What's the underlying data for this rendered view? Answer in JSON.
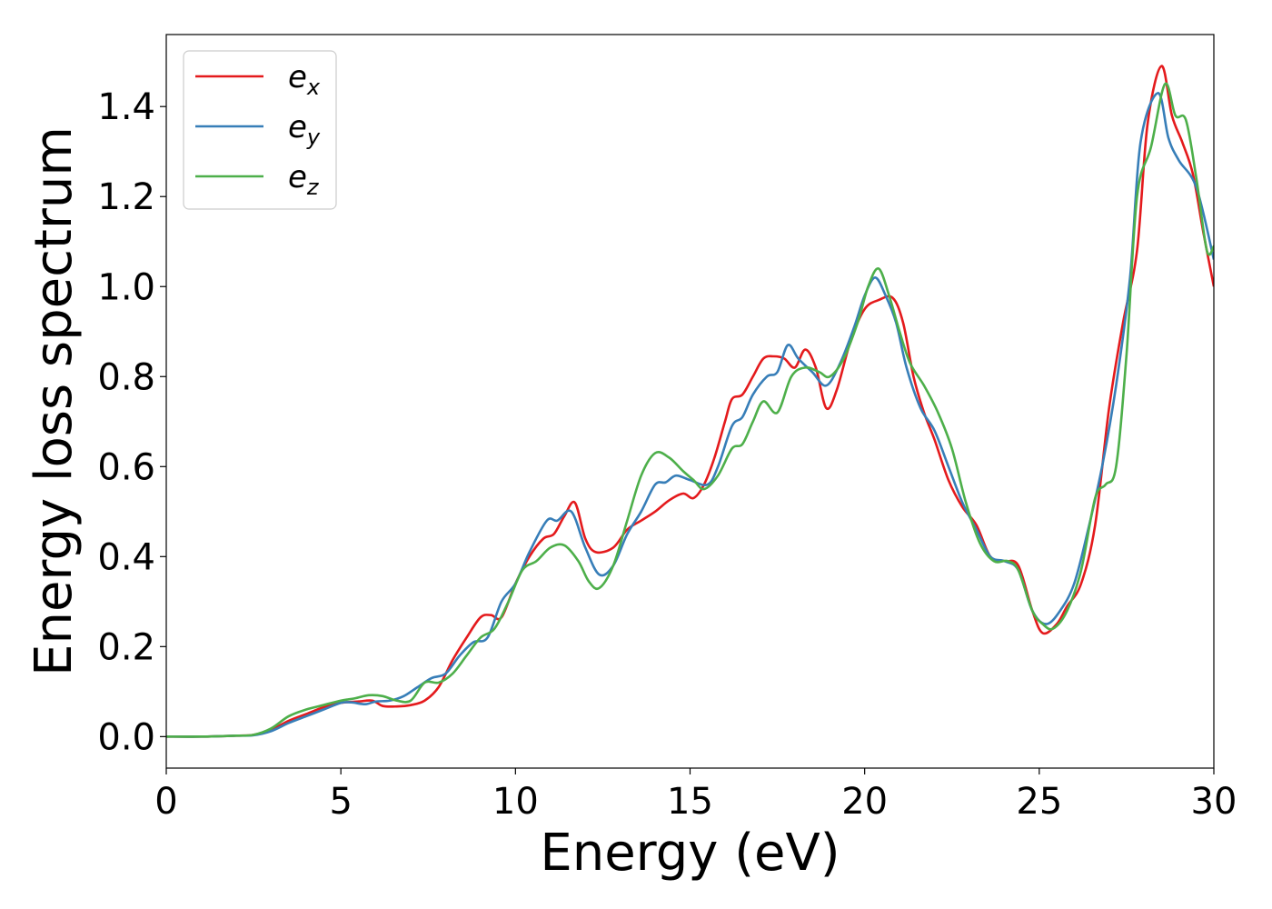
{
  "chart_data": {
    "type": "line",
    "xlabel": "Energy (eV)",
    "ylabel": "Energy loss spectrum",
    "xlim": [
      0,
      30
    ],
    "ylim": [
      -0.07,
      1.56
    ],
    "xticks": [
      0,
      5,
      10,
      15,
      20,
      25,
      30
    ],
    "xtick_labels": [
      "0",
      "5",
      "10",
      "15",
      "20",
      "25",
      "30"
    ],
    "yticks": [
      0.0,
      0.2,
      0.4,
      0.6,
      0.8,
      1.0,
      1.2,
      1.4
    ],
    "ytick_labels": [
      "0.0",
      "0.2",
      "0.4",
      "0.6",
      "0.8",
      "1.0",
      "1.2",
      "1.4"
    ],
    "grid": false,
    "legend_position": "top-left",
    "series": [
      {
        "name": "e",
        "name_sub": "x",
        "color": "#e41a1c",
        "points": [
          [
            0,
            0
          ],
          [
            1,
            0
          ],
          [
            2,
            0.002
          ],
          [
            2.5,
            0.004
          ],
          [
            3,
            0.015
          ],
          [
            3.5,
            0.035
          ],
          [
            4,
            0.05
          ],
          [
            4.5,
            0.065
          ],
          [
            5,
            0.075
          ],
          [
            5.5,
            0.078
          ],
          [
            5.9,
            0.08
          ],
          [
            6.2,
            0.068
          ],
          [
            6.6,
            0.067
          ],
          [
            7,
            0.07
          ],
          [
            7.4,
            0.08
          ],
          [
            7.8,
            0.11
          ],
          [
            8.2,
            0.17
          ],
          [
            8.6,
            0.22
          ],
          [
            9,
            0.265
          ],
          [
            9.3,
            0.27
          ],
          [
            9.6,
            0.265
          ],
          [
            10,
            0.34
          ],
          [
            10.4,
            0.4
          ],
          [
            10.8,
            0.44
          ],
          [
            11.1,
            0.45
          ],
          [
            11.4,
            0.49
          ],
          [
            11.7,
            0.52
          ],
          [
            12,
            0.44
          ],
          [
            12.3,
            0.41
          ],
          [
            12.8,
            0.42
          ],
          [
            13.2,
            0.46
          ],
          [
            13.6,
            0.48
          ],
          [
            14,
            0.5
          ],
          [
            14.4,
            0.525
          ],
          [
            14.8,
            0.54
          ],
          [
            15.1,
            0.53
          ],
          [
            15.4,
            0.56
          ],
          [
            15.7,
            0.62
          ],
          [
            16,
            0.7
          ],
          [
            16.2,
            0.75
          ],
          [
            16.5,
            0.76
          ],
          [
            16.8,
            0.8
          ],
          [
            17.1,
            0.84
          ],
          [
            17.4,
            0.845
          ],
          [
            17.7,
            0.84
          ],
          [
            18,
            0.82
          ],
          [
            18.3,
            0.86
          ],
          [
            18.6,
            0.82
          ],
          [
            18.9,
            0.73
          ],
          [
            19.2,
            0.77
          ],
          [
            19.6,
            0.88
          ],
          [
            20,
            0.95
          ],
          [
            20.4,
            0.97
          ],
          [
            20.8,
            0.975
          ],
          [
            21.1,
            0.92
          ],
          [
            21.4,
            0.8
          ],
          [
            21.7,
            0.72
          ],
          [
            22,
            0.66
          ],
          [
            22.4,
            0.57
          ],
          [
            22.8,
            0.51
          ],
          [
            23.2,
            0.47
          ],
          [
            23.6,
            0.4
          ],
          [
            24,
            0.39
          ],
          [
            24.4,
            0.38
          ],
          [
            24.8,
            0.28
          ],
          [
            25.1,
            0.23
          ],
          [
            25.5,
            0.25
          ],
          [
            25.8,
            0.29
          ],
          [
            26.2,
            0.34
          ],
          [
            26.6,
            0.47
          ],
          [
            27,
            0.73
          ],
          [
            27.4,
            0.92
          ],
          [
            27.8,
            1.08
          ],
          [
            28.1,
            1.36
          ],
          [
            28.5,
            1.49
          ],
          [
            28.8,
            1.38
          ],
          [
            29.1,
            1.32
          ],
          [
            29.4,
            1.25
          ],
          [
            29.7,
            1.12
          ],
          [
            30,
            1.0
          ]
        ]
      },
      {
        "name": "e",
        "name_sub": "y",
        "color": "#377eb8",
        "points": [
          [
            0,
            0
          ],
          [
            1,
            0
          ],
          [
            2,
            0.002
          ],
          [
            2.5,
            0.003
          ],
          [
            3,
            0.012
          ],
          [
            3.5,
            0.03
          ],
          [
            4,
            0.045
          ],
          [
            4.5,
            0.06
          ],
          [
            5,
            0.075
          ],
          [
            5.3,
            0.076
          ],
          [
            5.7,
            0.072
          ],
          [
            6,
            0.078
          ],
          [
            6.4,
            0.08
          ],
          [
            6.8,
            0.09
          ],
          [
            7.2,
            0.11
          ],
          [
            7.6,
            0.13
          ],
          [
            8,
            0.14
          ],
          [
            8.4,
            0.18
          ],
          [
            8.8,
            0.21
          ],
          [
            9.2,
            0.22
          ],
          [
            9.6,
            0.3
          ],
          [
            10,
            0.34
          ],
          [
            10.4,
            0.41
          ],
          [
            10.9,
            0.48
          ],
          [
            11.2,
            0.48
          ],
          [
            11.6,
            0.5
          ],
          [
            12,
            0.42
          ],
          [
            12.4,
            0.36
          ],
          [
            12.8,
            0.38
          ],
          [
            13.2,
            0.45
          ],
          [
            13.6,
            0.5
          ],
          [
            14,
            0.56
          ],
          [
            14.3,
            0.565
          ],
          [
            14.6,
            0.58
          ],
          [
            15,
            0.57
          ],
          [
            15.5,
            0.56
          ],
          [
            15.8,
            0.6
          ],
          [
            16.2,
            0.69
          ],
          [
            16.5,
            0.71
          ],
          [
            16.8,
            0.76
          ],
          [
            17.2,
            0.8
          ],
          [
            17.5,
            0.81
          ],
          [
            17.8,
            0.87
          ],
          [
            18.1,
            0.84
          ],
          [
            18.5,
            0.81
          ],
          [
            18.9,
            0.78
          ],
          [
            19.3,
            0.83
          ],
          [
            19.7,
            0.91
          ],
          [
            20,
            0.98
          ],
          [
            20.3,
            1.02
          ],
          [
            20.6,
            0.98
          ],
          [
            20.9,
            0.92
          ],
          [
            21.2,
            0.82
          ],
          [
            21.6,
            0.73
          ],
          [
            22,
            0.68
          ],
          [
            22.4,
            0.6
          ],
          [
            22.8,
            0.52
          ],
          [
            23.2,
            0.46
          ],
          [
            23.6,
            0.4
          ],
          [
            24,
            0.39
          ],
          [
            24.4,
            0.37
          ],
          [
            24.8,
            0.28
          ],
          [
            25.2,
            0.25
          ],
          [
            25.6,
            0.28
          ],
          [
            26,
            0.34
          ],
          [
            26.4,
            0.46
          ],
          [
            26.8,
            0.6
          ],
          [
            27.2,
            0.78
          ],
          [
            27.6,
            1.02
          ],
          [
            27.9,
            1.32
          ],
          [
            28.4,
            1.43
          ],
          [
            28.7,
            1.33
          ],
          [
            29,
            1.28
          ],
          [
            29.5,
            1.22
          ],
          [
            30,
            1.06
          ]
        ]
      },
      {
        "name": "e",
        "name_sub": "z",
        "color": "#4daf4a",
        "points": [
          [
            0,
            0
          ],
          [
            1,
            0
          ],
          [
            2,
            0.002
          ],
          [
            2.5,
            0.004
          ],
          [
            3,
            0.018
          ],
          [
            3.5,
            0.045
          ],
          [
            4,
            0.06
          ],
          [
            4.5,
            0.07
          ],
          [
            5,
            0.08
          ],
          [
            5.4,
            0.085
          ],
          [
            5.8,
            0.092
          ],
          [
            6.2,
            0.09
          ],
          [
            6.6,
            0.08
          ],
          [
            7,
            0.08
          ],
          [
            7.4,
            0.12
          ],
          [
            7.8,
            0.12
          ],
          [
            8.2,
            0.14
          ],
          [
            8.6,
            0.18
          ],
          [
            9,
            0.22
          ],
          [
            9.4,
            0.24
          ],
          [
            9.8,
            0.3
          ],
          [
            10.2,
            0.37
          ],
          [
            10.6,
            0.39
          ],
          [
            11,
            0.42
          ],
          [
            11.4,
            0.425
          ],
          [
            11.8,
            0.39
          ],
          [
            12.1,
            0.345
          ],
          [
            12.4,
            0.33
          ],
          [
            12.8,
            0.38
          ],
          [
            13.2,
            0.48
          ],
          [
            13.6,
            0.58
          ],
          [
            14,
            0.63
          ],
          [
            14.4,
            0.62
          ],
          [
            14.8,
            0.59
          ],
          [
            15.1,
            0.57
          ],
          [
            15.4,
            0.55
          ],
          [
            15.8,
            0.58
          ],
          [
            16.2,
            0.64
          ],
          [
            16.5,
            0.65
          ],
          [
            16.8,
            0.7
          ],
          [
            17.1,
            0.745
          ],
          [
            17.5,
            0.72
          ],
          [
            17.9,
            0.8
          ],
          [
            18.3,
            0.82
          ],
          [
            18.7,
            0.81
          ],
          [
            19,
            0.8
          ],
          [
            19.4,
            0.84
          ],
          [
            19.8,
            0.92
          ],
          [
            20.1,
            1.0
          ],
          [
            20.4,
            1.04
          ],
          [
            20.7,
            0.98
          ],
          [
            21,
            0.9
          ],
          [
            21.3,
            0.83
          ],
          [
            21.7,
            0.78
          ],
          [
            22.1,
            0.72
          ],
          [
            22.5,
            0.64
          ],
          [
            22.9,
            0.52
          ],
          [
            23.3,
            0.43
          ],
          [
            23.7,
            0.39
          ],
          [
            24.1,
            0.39
          ],
          [
            24.4,
            0.37
          ],
          [
            24.8,
            0.28
          ],
          [
            25.1,
            0.25
          ],
          [
            25.4,
            0.24
          ],
          [
            25.8,
            0.28
          ],
          [
            26.2,
            0.37
          ],
          [
            26.6,
            0.53
          ],
          [
            26.9,
            0.56
          ],
          [
            27.2,
            0.6
          ],
          [
            27.5,
            0.85
          ],
          [
            27.8,
            1.2
          ],
          [
            28.2,
            1.31
          ],
          [
            28.6,
            1.45
          ],
          [
            28.9,
            1.38
          ],
          [
            29.2,
            1.37
          ],
          [
            29.5,
            1.24
          ],
          [
            29.8,
            1.08
          ],
          [
            30,
            1.09
          ]
        ]
      }
    ]
  }
}
